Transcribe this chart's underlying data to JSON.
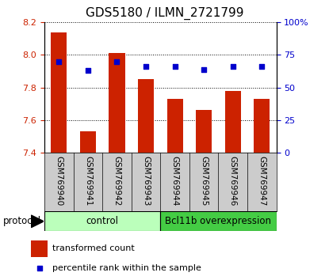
{
  "title": "GDS5180 / ILMN_2721799",
  "samples": [
    "GSM769940",
    "GSM769941",
    "GSM769942",
    "GSM769943",
    "GSM769944",
    "GSM769945",
    "GSM769946",
    "GSM769947"
  ],
  "transformed_counts": [
    8.14,
    7.53,
    8.01,
    7.85,
    7.73,
    7.66,
    7.78,
    7.73
  ],
  "percentile_ranks": [
    70,
    63,
    70,
    66,
    66,
    64,
    66,
    66
  ],
  "ylim_left": [
    7.4,
    8.2
  ],
  "ylim_right": [
    0,
    100
  ],
  "yticks_left": [
    7.4,
    7.6,
    7.8,
    8.0,
    8.2
  ],
  "yticks_right": [
    0,
    25,
    50,
    75,
    100
  ],
  "bar_color": "#cc2200",
  "dot_color": "#0000cc",
  "bar_bottom": 7.4,
  "groups": [
    {
      "label": "control",
      "start": 0,
      "end": 4,
      "color": "#bbffbb"
    },
    {
      "label": "Bcl11b overexpression",
      "start": 4,
      "end": 8,
      "color": "#44cc44"
    }
  ],
  "protocol_label": "protocol",
  "legend_bar_label": "transformed count",
  "legend_dot_label": "percentile rank within the sample",
  "xlabel_area_color": "#cccccc",
  "tick_label_color_left": "#cc2200",
  "tick_label_color_right": "#0000cc"
}
